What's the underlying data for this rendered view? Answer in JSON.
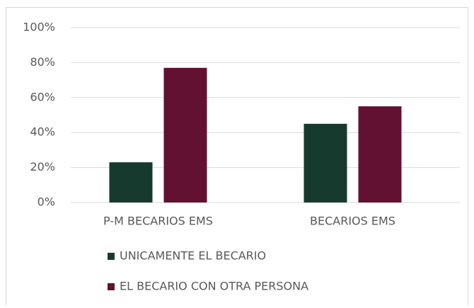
{
  "chart_data": {
    "type": "bar",
    "categories": [
      "P-M BECARIOS EMS",
      "BECARIOS EMS"
    ],
    "series": [
      {
        "name": "UNICAMENTE EL BECARIO",
        "color": "#173a2f",
        "values": [
          23,
          45
        ]
      },
      {
        "name": "EL BECARIO CON OTRA PERSONA",
        "color": "#621132",
        "values": [
          77,
          55
        ]
      }
    ],
    "ylim": [
      0,
      100
    ],
    "yticks": [
      {
        "value": 0,
        "label": "0%"
      },
      {
        "value": 20,
        "label": "20%"
      },
      {
        "value": 40,
        "label": "40%"
      },
      {
        "value": 60,
        "label": "60%"
      },
      {
        "value": 80,
        "label": "80%"
      },
      {
        "value": 100,
        "label": "100%"
      }
    ],
    "grid": true,
    "legend": "bottom"
  }
}
